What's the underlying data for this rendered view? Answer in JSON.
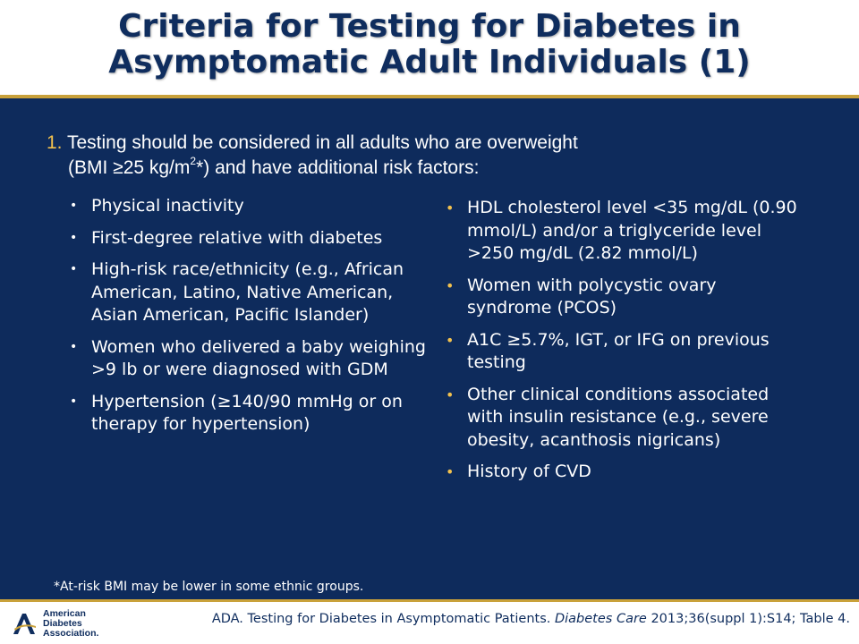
{
  "title": {
    "line1": "Criteria for Testing for Diabetes in",
    "line2": "Asymptomatic Adult Individuals (1)"
  },
  "lead": {
    "number": "1.",
    "line1_text": " Testing should be considered in all adults who are overweight",
    "line2_pre": "(BMI ≥25 kg/m",
    "line2_sup": "2",
    "line2_post": "*) and have additional risk factors:"
  },
  "left_list": [
    "Physical inactivity",
    "First-degree relative with diabetes",
    "High-risk race/ethnicity (e.g., African American, Latino, Native American, Asian American, Pacific Islander)",
    "Women who delivered a baby weighing >9 lb or were diagnosed with GDM",
    "Hypertension (≥140/90 mmHg or on therapy for hypertension)"
  ],
  "right_list": [
    "HDL cholesterol level <35 mg/dL (0.90 mmol/L) and/or a triglyceride level >250 mg/dL (2.82 mmol/L)",
    "Women with polycystic ovary syndrome (PCOS)",
    "A1C ≥5.7%, IGT, or IFG on previous testing",
    "Other clinical conditions associated with insulin resistance (e.g., severe obesity, acanthosis nigricans)",
    "History of CVD"
  ],
  "footnote": "*At-risk BMI may be lower in some ethnic groups.",
  "citation": {
    "pre": "ADA. Testing for Diabetes in Asymptomatic Patients. ",
    "journal": "Diabetes Care",
    "post": " 2013;36(suppl 1):S14; Table 4."
  },
  "logo": {
    "line1": "American",
    "line2": "Diabetes",
    "line3": "Association."
  },
  "colors": {
    "background": "#0e2b5c",
    "title": "#0f2d5e",
    "accent": "#f2c14e",
    "rule": "#c9a13a"
  },
  "icons": {
    "logo_mark": "ada-swoosh-icon",
    "bullet": "bullet-dot-icon"
  }
}
